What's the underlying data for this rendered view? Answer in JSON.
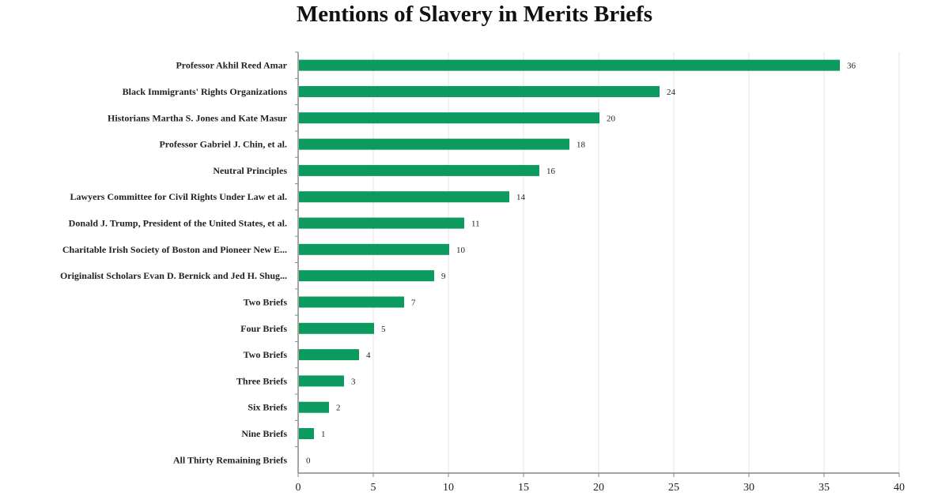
{
  "chart_data": {
    "type": "bar",
    "orientation": "horizontal",
    "title": "Mentions of Slavery in Merits Briefs",
    "xlabel": "",
    "ylabel": "",
    "xlim": [
      0,
      40
    ],
    "xticks": [
      0,
      5,
      10,
      15,
      20,
      25,
      30,
      35,
      40
    ],
    "grid": true,
    "bar_color": "#0c9a5e",
    "categories": [
      "Professor Akhil Reed Amar",
      "Black Immigrants' Rights Organizations",
      "Historians Martha S. Jones and Kate Masur",
      "Professor Gabriel J. Chin, et al.",
      "Neutral Principles",
      "Lawyers Committee for Civil Rights Under Law et al.",
      "Donald J. Trump, President of the United States, et al.",
      "Charitable Irish Society of Boston and Pioneer New E...",
      "Originalist Scholars Evan D. Bernick and Jed H. Shug...",
      "Two Briefs",
      "Four Briefs",
      "Two Briefs",
      "Three Briefs",
      "Six Briefs",
      "Nine Briefs",
      "All Thirty Remaining Briefs"
    ],
    "values": [
      36,
      24,
      20,
      18,
      16,
      14,
      11,
      10,
      9,
      7,
      5,
      4,
      3,
      2,
      1,
      0
    ]
  }
}
